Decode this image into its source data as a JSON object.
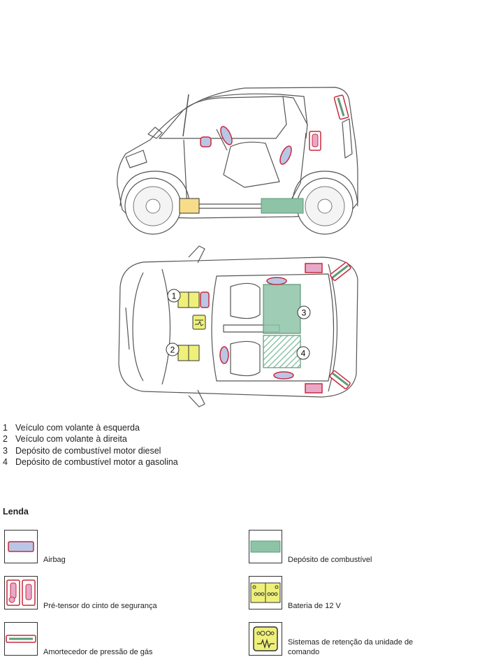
{
  "numbered_list": [
    {
      "num": "1",
      "text": "Veículo com volante à esquerda"
    },
    {
      "num": "2",
      "text": "Veículo com volante à direita"
    },
    {
      "num": "3",
      "text": "Depósito de combustível motor diesel"
    },
    {
      "num": "4",
      "text": "Depósito de combustível motor a gasolina"
    }
  ],
  "callouts": {
    "c1": "1",
    "c2": "2",
    "c3": "3",
    "c4": "4"
  },
  "legend": {
    "title": "Lenda",
    "airbag": "Airbag",
    "fuel_tank": "Depósito de combustível",
    "pretensioner": "Pré-tensor do cinto de segurança",
    "battery": "Bateria de 12 V",
    "gas_damper": "Amortecedor de pressão de gás",
    "restraint_unit": "Sistemas de retenção da unidade de comando"
  },
  "colors": {
    "airbag_fill": "#b9c6e6",
    "airbag_stroke": "#c8283c",
    "pretensioner_fill": "#e7a9c9",
    "fuel_fill": "#8ec3a7",
    "fuel_stroke": "#5a9a78",
    "battery_fill": "#eef07a",
    "battery_yellow_side": "#f7dd8a",
    "damper_fill": "#9fd0b2",
    "line": "#555555"
  }
}
